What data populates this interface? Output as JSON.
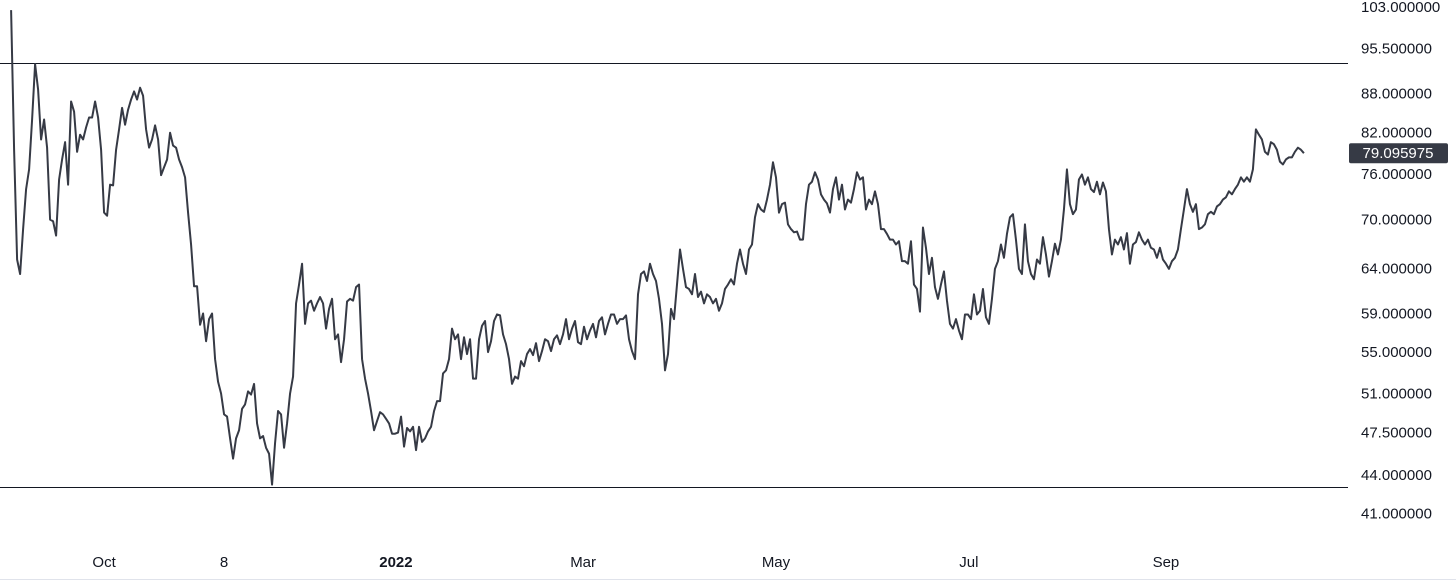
{
  "chart_data": {
    "type": "line",
    "log_scale": true,
    "xlim": [
      -3.7,
      445.7
    ],
    "xticks": [
      {
        "value": 31,
        "label": "Oct"
      },
      {
        "value": 71,
        "label": "8"
      },
      {
        "value": 128.3,
        "label": "2022"
      },
      {
        "value": 190.7,
        "label": "Mar"
      },
      {
        "value": 255,
        "label": "May"
      },
      {
        "value": 319.3,
        "label": "Jul"
      },
      {
        "value": 385,
        "label": "Sep"
      }
    ],
    "ylim": [
      38.8,
      104.5
    ],
    "yticks": [
      {
        "value": 103,
        "label": "103.000000"
      },
      {
        "value": 95.5,
        "label": "95.500000"
      },
      {
        "value": 88,
        "label": "88.000000"
      },
      {
        "value": 82,
        "label": "82.000000"
      },
      {
        "value": 76,
        "label": "76.000000"
      },
      {
        "value": 70,
        "label": "70.000000"
      },
      {
        "value": 64,
        "label": "64.000000"
      },
      {
        "value": 59,
        "label": "59.000000"
      },
      {
        "value": 55,
        "label": "55.000000"
      },
      {
        "value": 51,
        "label": "51.000000"
      },
      {
        "value": 47.5,
        "label": "47.500000"
      },
      {
        "value": 44,
        "label": "44.000000"
      },
      {
        "value": 41,
        "label": "41.000000"
      }
    ],
    "levels": [
      93.2,
      43.1
    ],
    "series": [
      {
        "color": "#363a45",
        "values": [
          102.6,
          79.6,
          65.2,
          63.5,
          68.9,
          74.1,
          76.8,
          84.1,
          93.0,
          88.8,
          81.1,
          84.1,
          79.9,
          70.1,
          69.9,
          68.1,
          75.4,
          78.2,
          80.7,
          74.7,
          86.9,
          85.3,
          79.3,
          81.8,
          81.1,
          82.9,
          84.4,
          84.4,
          86.9,
          84.4,
          79.6,
          71.0,
          70.6,
          74.7,
          74.6,
          79.6,
          82.6,
          85.9,
          83.3,
          85.6,
          87.2,
          88.5,
          87.2,
          89.1,
          87.8,
          82.6,
          79.9,
          81.1,
          83.2,
          81.1,
          76.0,
          77.1,
          78.2,
          82.1,
          80.2,
          79.9,
          78.2,
          77.1,
          75.7,
          71.0,
          67.0,
          62.1,
          62.1,
          57.9,
          59.1,
          56.2,
          58.5,
          59.1,
          54.4,
          52.2,
          51.1,
          49.2,
          49.0,
          47.1,
          45.4,
          47.1,
          47.8,
          49.7,
          50.1,
          51.3,
          51.0,
          52.0,
          48.4,
          47.1,
          47.3,
          46.3,
          45.8,
          43.3,
          46.7,
          49.5,
          49.2,
          46.3,
          48.4,
          51.1,
          52.7,
          60.2,
          62.3,
          64.7,
          58.0,
          60.2,
          60.5,
          59.4,
          60.2,
          60.9,
          60.2,
          57.5,
          59.6,
          60.7,
          56.4,
          56.9,
          54.1,
          56.4,
          60.4,
          60.7,
          60.5,
          62.0,
          62.3,
          54.4,
          52.5,
          51.1,
          49.5,
          47.8,
          48.6,
          49.4,
          49.2,
          48.8,
          48.4,
          47.5,
          47.5,
          47.6,
          49.0,
          46.4,
          48.0,
          47.7,
          48.1,
          46.1,
          48.1,
          46.8,
          47.1,
          47.7,
          48.1,
          49.5,
          50.4,
          50.4,
          53.0,
          53.3,
          54.4,
          57.5,
          56.4,
          56.9,
          54.4,
          56.6,
          54.9,
          56.4,
          52.5,
          52.5,
          56.4,
          57.8,
          58.3,
          55.1,
          56.2,
          58.3,
          59.0,
          58.9,
          56.9,
          55.9,
          54.4,
          52.0,
          52.7,
          52.5,
          54.2,
          53.7,
          54.9,
          55.4,
          54.8,
          56.0,
          54.2,
          55.2,
          56.4,
          56.2,
          55.2,
          56.4,
          56.8,
          55.9,
          56.9,
          58.5,
          56.4,
          57.5,
          58.3,
          56.1,
          55.9,
          57.7,
          56.4,
          57.3,
          58.0,
          56.6,
          58.3,
          58.7,
          56.9,
          58.0,
          59.0,
          59.0,
          58.0,
          58.5,
          58.5,
          58.9,
          56.4,
          55.2,
          54.4,
          61.2,
          63.5,
          63.8,
          62.7,
          64.7,
          63.5,
          62.7,
          60.7,
          58.0,
          53.3,
          54.9,
          59.6,
          58.5,
          62.3,
          66.4,
          64.1,
          62.0,
          61.8,
          61.2,
          63.5,
          60.9,
          61.5,
          60.2,
          61.2,
          60.9,
          60.2,
          60.7,
          59.4,
          60.2,
          61.8,
          62.3,
          62.9,
          62.3,
          64.7,
          66.4,
          64.7,
          63.5,
          66.4,
          67.0,
          70.4,
          72.1,
          71.4,
          71.1,
          72.7,
          74.7,
          77.8,
          75.7,
          71.0,
          72.1,
          72.3,
          69.5,
          68.9,
          68.5,
          68.6,
          67.6,
          67.6,
          72.1,
          74.7,
          75.1,
          76.4,
          75.4,
          73.4,
          72.7,
          72.2,
          71.0,
          74.1,
          75.7,
          72.7,
          74.7,
          71.4,
          72.7,
          72.3,
          74.1,
          76.4,
          75.4,
          75.7,
          71.4,
          72.7,
          72.1,
          73.8,
          72.1,
          68.9,
          68.9,
          68.3,
          67.6,
          67.6,
          67.0,
          67.4,
          65.0,
          65.0,
          64.7,
          67.4,
          62.3,
          61.8,
          59.3,
          69.1,
          66.6,
          63.5,
          65.4,
          62.0,
          60.7,
          62.3,
          63.8,
          60.5,
          58.0,
          57.5,
          58.5,
          57.3,
          56.4,
          59.0,
          59.0,
          58.5,
          61.2,
          59.0,
          59.4,
          61.8,
          58.7,
          58.0,
          60.7,
          64.1,
          65.0,
          67.0,
          65.4,
          68.3,
          70.4,
          70.8,
          67.6,
          64.1,
          63.5,
          69.5,
          65.0,
          63.5,
          62.9,
          65.2,
          64.7,
          67.9,
          65.8,
          63.2,
          65.0,
          67.1,
          65.8,
          67.6,
          71.4,
          76.8,
          72.1,
          70.8,
          71.4,
          75.4,
          76.1,
          74.7,
          75.7,
          74.1,
          73.7,
          75.1,
          73.4,
          75.0,
          73.8,
          68.9,
          65.8,
          67.6,
          67.0,
          67.9,
          66.4,
          68.4,
          64.7,
          67.0,
          67.3,
          68.5,
          67.6,
          67.0,
          67.6,
          66.6,
          66.4,
          65.4,
          66.6,
          65.2,
          64.7,
          64.1,
          65.0,
          65.4,
          66.4,
          68.9,
          71.4,
          74.1,
          72.1,
          71.1,
          72.1,
          68.9,
          69.1,
          69.5,
          70.8,
          71.1,
          70.8,
          71.8,
          72.1,
          72.7,
          73.0,
          73.8,
          73.4,
          74.1,
          74.7,
          75.7,
          75.1,
          75.7,
          75.1,
          76.8,
          82.6,
          81.8,
          81.1,
          79.3,
          78.9,
          80.7,
          80.4,
          79.6,
          77.9,
          77.5,
          78.2,
          78.5,
          78.5,
          79.3,
          79.9,
          79.6,
          79.095975
        ]
      }
    ]
  }
}
